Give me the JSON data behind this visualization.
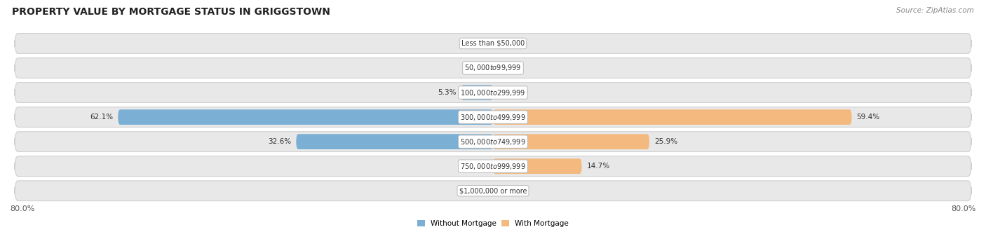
{
  "title": "PROPERTY VALUE BY MORTGAGE STATUS IN GRIGGSTOWN",
  "source": "Source: ZipAtlas.com",
  "categories": [
    "Less than $50,000",
    "$50,000 to $99,999",
    "$100,000 to $299,999",
    "$300,000 to $499,999",
    "$500,000 to $749,999",
    "$750,000 to $999,999",
    "$1,000,000 or more"
  ],
  "without_mortgage": [
    0.0,
    0.0,
    5.3,
    62.1,
    32.6,
    0.0,
    0.0
  ],
  "with_mortgage": [
    0.0,
    0.0,
    0.0,
    59.4,
    25.9,
    14.7,
    0.0
  ],
  "max_val": 80.0,
  "color_without": "#7BAFD4",
  "color_with": "#F4B97F",
  "bg_row_color": "#E8E8E8",
  "bg_row_edge": "#D0D0D0",
  "title_fontsize": 10,
  "source_fontsize": 7.5,
  "label_fontsize": 7.5,
  "category_fontsize": 7.0,
  "axis_label_fontsize": 8,
  "bar_height": 0.62
}
